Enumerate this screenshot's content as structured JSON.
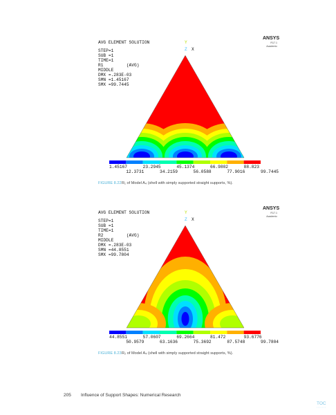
{
  "figures": [
    {
      "header": {
        "title": "AVG ELEMENT SOLUTION",
        "lines": [
          "STEP=1",
          "SUB =1",
          "TIME=1",
          "R1         (AVG)",
          "MIDDLE",
          "DMX =.283E-03",
          "SMN =1.45167",
          "SMX =99.7445"
        ]
      },
      "brand": "ANSYS",
      "version": "R17.1",
      "edition": "Academic",
      "axes": [
        "Y",
        "Z",
        "X"
      ],
      "legend_top": [
        "1.45167",
        "23.2945",
        "45.1374",
        "66.9802",
        "88.823"
      ],
      "legend_bottom": [
        "12.3731",
        "34.2159",
        "56.0588",
        "77.9016",
        "99.7445"
      ],
      "caption_label": "FIGURE 8.22",
      "caption": "R₁ of Model A₄ (shell with simply supported straight supports, %)."
    },
    {
      "header": {
        "title": "AVG ELEMENT SOLUTION",
        "lines": [
          "STEP=1",
          "SUB =1",
          "TIME=1",
          "R2         (AVG)",
          "MIDDLE",
          "DMX =.283E-03",
          "SMN =44.8551",
          "SMX =99.7804"
        ]
      },
      "brand": "ANSYS",
      "version": "R17.1",
      "edition": "Academic",
      "axes": [
        "Y",
        "Z",
        "X"
      ],
      "legend_top": [
        "44.8551",
        "57.0607",
        "69.2664",
        "81.472",
        "93.6776"
      ],
      "legend_bottom": [
        "50.9579",
        "63.1636",
        "75.3692",
        "87.5748",
        "99.7804"
      ],
      "caption_label": "FIGURE 8.23",
      "caption": "R₂ of Model A₄ (shell with simply supported straight supports, %)."
    }
  ],
  "footer": {
    "page": "205",
    "title": "Influence of Support Shapes: Numerical Research"
  },
  "toc": "TOC"
}
